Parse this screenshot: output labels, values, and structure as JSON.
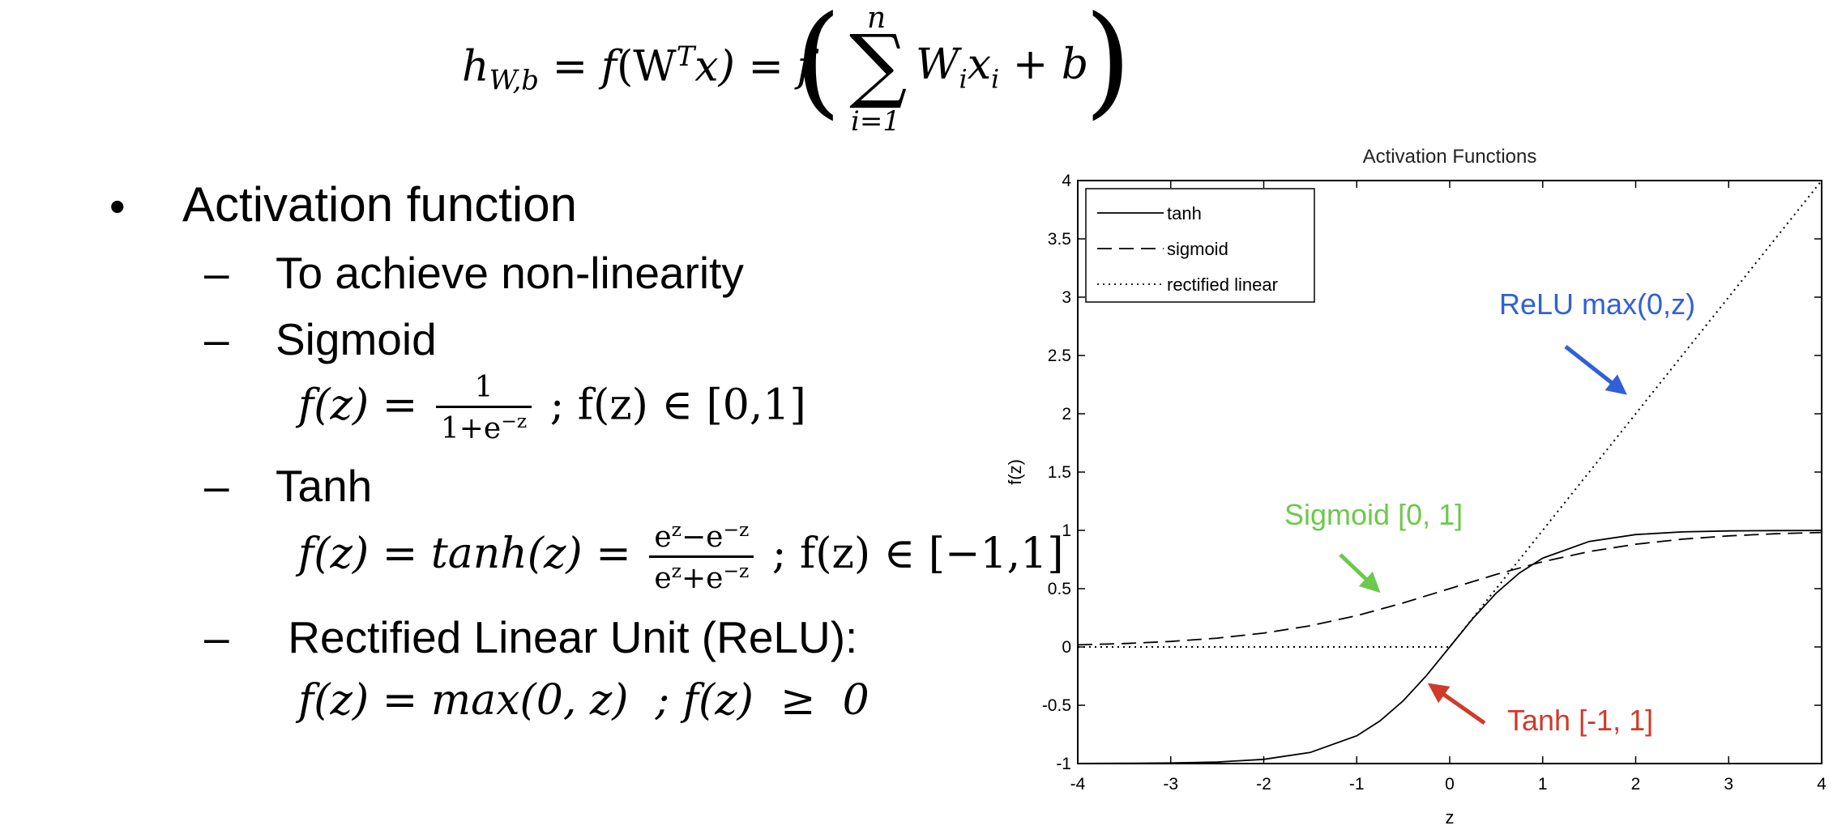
{
  "formula": {
    "lhs_h": "h",
    "lhs_sub": "W,b",
    "eq1": "=",
    "f1": "f",
    "arg1": "(W",
    "arg1_sup": "T",
    "arg1_end": "x)",
    "eq2": "=",
    "f2": "f",
    "sum_top": "n",
    "sum_bottom": "i=1",
    "term_w": "W",
    "term_w_sub": "i",
    "term_x": "x",
    "term_x_sub": "i",
    "plus_b": "+ b"
  },
  "bullets": {
    "main": "Activation function",
    "items": [
      {
        "dash": "–",
        "label": "To achieve non-linearity"
      },
      {
        "dash": "–",
        "label": "Sigmoid"
      },
      {
        "dash": "–",
        "label": "Tanh"
      },
      {
        "dash": "–",
        "label": " Rectified Linear Unit (ReLU):"
      }
    ],
    "sigmoid_eq": {
      "lhs": "f(z) =",
      "num": "1",
      "den": "1+e",
      "den_sup": "−z",
      "rhs": "; f(z) ∈ [0,1]"
    },
    "tanh_eq": {
      "lhs": "f(z) = tanh(z) =",
      "num_a": "e",
      "num_a_sup": "z",
      "num_mid": "−e",
      "num_b_sup": "−z",
      "den_a": "e",
      "den_a_sup": "z",
      "den_mid": "+e",
      "den_b_sup": "−z",
      "rhs": "; f(z) ∈  [−1,1]"
    },
    "relu_eq": {
      "text": "f(z) = max(0, z)  ; f(z)  ≥  0"
    }
  },
  "chart_data": {
    "type": "line",
    "title": "Activation Functions",
    "xlabel": "z",
    "ylabel": "f(z)",
    "xlim": [
      -4,
      4
    ],
    "ylim": [
      -1,
      4
    ],
    "xticks": [
      -4,
      -3,
      -2,
      -1,
      0,
      1,
      2,
      3,
      4
    ],
    "yticks": [
      -1,
      -0.5,
      0,
      0.5,
      1,
      1.5,
      2,
      2.5,
      3,
      3.5,
      4
    ],
    "ytick_labels": [
      "-1",
      "-0.5",
      "0",
      "0.5",
      "1",
      "1.5",
      "2",
      "2.5",
      "3",
      "3.5",
      "4"
    ],
    "xtick_labels": [
      "-4",
      "-3",
      "-2",
      "-1",
      "0",
      "1",
      "2",
      "3",
      "4"
    ],
    "legend_position": "top-left",
    "series": [
      {
        "name": "tanh",
        "style": "solid",
        "x": [
          -4,
          -3.5,
          -3,
          -2.5,
          -2,
          -1.5,
          -1,
          -0.75,
          -0.5,
          -0.25,
          0,
          0.25,
          0.5,
          0.75,
          1,
          1.5,
          2,
          2.5,
          3,
          3.5,
          4
        ],
        "y": [
          -0.999,
          -0.998,
          -0.995,
          -0.987,
          -0.964,
          -0.905,
          -0.762,
          -0.635,
          -0.462,
          -0.245,
          0,
          0.245,
          0.462,
          0.635,
          0.762,
          0.905,
          0.964,
          0.987,
          0.995,
          0.998,
          0.999
        ]
      },
      {
        "name": "sigmoid",
        "style": "dashed",
        "x": [
          -4,
          -3.5,
          -3,
          -2.5,
          -2,
          -1.5,
          -1,
          -0.5,
          0,
          0.5,
          1,
          1.5,
          2,
          2.5,
          3,
          3.5,
          4
        ],
        "y": [
          0.018,
          0.029,
          0.047,
          0.076,
          0.119,
          0.182,
          0.269,
          0.378,
          0.5,
          0.622,
          0.731,
          0.818,
          0.881,
          0.924,
          0.953,
          0.971,
          0.982
        ]
      },
      {
        "name": "rectified linear",
        "style": "dotted",
        "x": [
          -4,
          0,
          4
        ],
        "y": [
          0,
          0,
          4
        ]
      }
    ],
    "annotations": [
      {
        "text": "ReLU max(0,z)",
        "color": "#3060d8"
      },
      {
        "text": "Sigmoid [0, 1]",
        "color": "#6dc94c"
      },
      {
        "text": "Tanh [-1, 1]",
        "color": "#d03a2a"
      }
    ]
  }
}
